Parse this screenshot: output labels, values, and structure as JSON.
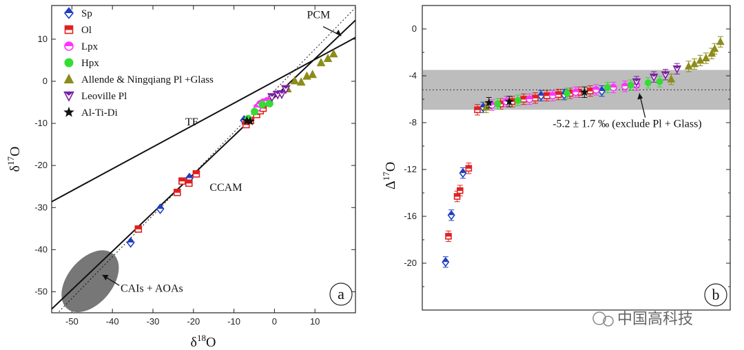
{
  "figure": {
    "watermark": "中国高科技",
    "colors": {
      "Sp": "#1f3fbf",
      "Ol": "#e02020",
      "Lpx": "#ff33ff",
      "Hpx": "#33dd33",
      "Pl_glass": "#8c8c1a",
      "Leoville": "#7a1fa0",
      "AlTiDi": "#111111",
      "band": "#bdbdbd"
    }
  },
  "chart_data": [
    {
      "type": "scatter",
      "panel_label": "a",
      "xlabel_main": "δ",
      "xlabel_sup": "18",
      "xlabel_tail": "O",
      "ylabel_main": "δ",
      "ylabel_sup": "17",
      "ylabel_tail": "O",
      "xlim": [
        -55,
        20
      ],
      "ylim": [
        -55,
        18
      ],
      "xticks": [
        -50,
        -40,
        -30,
        -20,
        -10,
        0,
        10
      ],
      "yticks": [
        -50,
        -40,
        -30,
        -20,
        -10,
        0,
        10
      ],
      "legend_position": "top-left",
      "legend": [
        {
          "key": "Sp",
          "label": "Sp",
          "marker": "diamond"
        },
        {
          "key": "Ol",
          "label": "Ol",
          "marker": "square-half"
        },
        {
          "key": "Lpx",
          "label": "Lpx",
          "marker": "circle-half"
        },
        {
          "key": "Hpx",
          "label": "Hpx",
          "marker": "circle"
        },
        {
          "key": "Pl_glass",
          "label": "Allende & Ningqiang Pl +Glass",
          "marker": "triangle-up"
        },
        {
          "key": "Leoville",
          "label": "Leoville Pl",
          "marker": "triangle-down"
        },
        {
          "key": "AlTiDi",
          "label": "Al-Ti-Di",
          "marker": "star"
        }
      ],
      "lines": [
        {
          "name": "TF",
          "x": [
            -55,
            20
          ],
          "y": [
            -28.6,
            10.4
          ],
          "style": "solid"
        },
        {
          "name": "CCAM",
          "x": [
            -55,
            20
          ],
          "y": [
            -54.1,
            14.5
          ],
          "style": "solid"
        },
        {
          "name": "PCM",
          "x": [
            -55,
            20
          ],
          "y": [
            -56.5,
            17.5
          ],
          "style": "dotted"
        }
      ],
      "annotations": [
        {
          "text": "TF",
          "x": -22,
          "y": -10.5
        },
        {
          "text": "CCAM",
          "x": -16,
          "y": -26
        },
        {
          "text": "PCM",
          "x": 8,
          "y": 15
        },
        {
          "text": "CAIs + AOAs",
          "x": -38,
          "y": -50
        }
      ],
      "ellipse": {
        "cx": -45.5,
        "cy": -47.5,
        "rx": 5.5,
        "ry": 8.5,
        "label": "CAIs + AOAs"
      },
      "series": [
        {
          "name": "Sp",
          "key": "Sp",
          "points": [
            [
              -35.5,
              -38.3
            ],
            [
              -28.2,
              -30.3
            ],
            [
              -21.0,
              -23.0
            ],
            [
              -7.5,
              -9.3
            ],
            [
              -6.3,
              -9.2
            ]
          ]
        },
        {
          "name": "Ol",
          "key": "Ol",
          "points": [
            [
              -33.6,
              -35.1
            ],
            [
              -24.0,
              -26.4
            ],
            [
              -22.8,
              -23.7
            ],
            [
              -21.1,
              -24.2
            ],
            [
              -19.3,
              -22.0
            ],
            [
              -7.0,
              -10.3
            ],
            [
              -5.9,
              -9.3
            ],
            [
              -4.4,
              -7.9
            ],
            [
              -3.5,
              -7.0
            ],
            [
              -2.8,
              -6.4
            ]
          ]
        },
        {
          "name": "Lpx",
          "key": "Lpx",
          "points": [
            [
              -4.2,
              -6.2
            ],
            [
              -3.5,
              -5.4
            ],
            [
              -2.7,
              -5.0
            ],
            [
              -1.8,
              -4.7
            ]
          ]
        },
        {
          "name": "Hpx",
          "key": "Hpx",
          "points": [
            [
              -6.5,
              -8.9
            ],
            [
              -4.9,
              -7.2
            ],
            [
              -3.0,
              -5.5
            ],
            [
              -1.2,
              -5.3
            ]
          ]
        },
        {
          "name": "Allende & Ningqiang Pl +Glass",
          "key": "Pl_glass",
          "points": [
            [
              3.2,
              -1.8
            ],
            [
              5.0,
              0.1
            ],
            [
              6.6,
              -0.2
            ],
            [
              8.0,
              1.2
            ],
            [
              9.4,
              1.6
            ],
            [
              11.5,
              4.4
            ],
            [
              13.2,
              5.4
            ],
            [
              14.6,
              6.5
            ]
          ]
        },
        {
          "name": "Leoville Pl",
          "key": "Leoville",
          "points": [
            [
              -0.6,
              -3.7
            ],
            [
              0.8,
              -3.1
            ],
            [
              1.8,
              -3.0
            ],
            [
              2.8,
              -1.8
            ]
          ]
        },
        {
          "name": "Al-Ti-Di",
          "key": "AlTiDi",
          "points": [
            [
              -6.8,
              -9.4
            ],
            [
              -6.0,
              -9.5
            ]
          ]
        }
      ]
    },
    {
      "type": "scatter",
      "panel_label": "b",
      "ylabel_main": "Δ",
      "ylabel_sup": "17",
      "ylabel_tail": "O",
      "xlim": [
        0,
        100
      ],
      "ylim": [
        -24,
        2
      ],
      "yticks": [
        -20,
        -16,
        -12,
        -8,
        -4,
        0
      ],
      "ytick_labels": [
        "-20",
        "-16",
        "-12",
        "-8",
        "-4",
        "0"
      ],
      "band": {
        "y1": -6.9,
        "y2": -3.5
      },
      "mean_line": {
        "y": -5.2
      },
      "annotation": {
        "text": "-5.2 ± 1.7 ‰ (exclude Pl + Glass)",
        "x": 41,
        "y": -7.8
      },
      "series": [
        {
          "name": "Sp",
          "key": "Sp",
          "points": [
            [
              4,
              -19.9
            ],
            [
              6,
              -15.9
            ],
            [
              10,
              -12.3
            ],
            [
              17,
              -6.7
            ],
            [
              37,
              -5.7
            ],
            [
              45,
              -5.6
            ],
            [
              58,
              -5.3
            ]
          ]
        },
        {
          "name": "Ol",
          "key": "Ol",
          "points": [
            [
              5,
              -17.7
            ],
            [
              8,
              -14.3
            ],
            [
              9,
              -13.8
            ],
            [
              12,
              -11.9
            ],
            [
              15,
              -6.9
            ],
            [
              23,
              -6.4
            ],
            [
              27,
              -6.2
            ],
            [
              31,
              -6.0
            ],
            [
              35,
              -5.9
            ],
            [
              39,
              -5.7
            ],
            [
              43,
              -5.6
            ],
            [
              47,
              -5.5
            ],
            [
              50,
              -5.4
            ],
            [
              54,
              -5.3
            ]
          ]
        },
        {
          "name": "Lpx",
          "key": "Lpx",
          "points": [
            [
              20,
              -6.5
            ],
            [
              25,
              -6.2
            ],
            [
              33,
              -6.0
            ],
            [
              41,
              -5.7
            ],
            [
              49,
              -5.4
            ],
            [
              56,
              -5.2
            ],
            [
              62,
              -5.0
            ],
            [
              66,
              -4.9
            ],
            [
              70,
              -4.8
            ]
          ]
        },
        {
          "name": "Hpx",
          "key": "Hpx",
          "points": [
            [
              22,
              -6.4
            ],
            [
              29,
              -6.1
            ],
            [
              46,
              -5.5
            ],
            [
              60,
              -5.0
            ],
            [
              68,
              -4.8
            ],
            [
              74,
              -4.6
            ],
            [
              78,
              -4.5
            ]
          ]
        },
        {
          "name": "Allende & Ningqiang Pl +Glass",
          "key": "Pl_glass",
          "points": [
            [
              18,
              -6.7
            ],
            [
              82,
              -4.3
            ],
            [
              88,
              -3.2
            ],
            [
              90,
              -3.0
            ],
            [
              92,
              -2.7
            ],
            [
              94,
              -2.5
            ],
            [
              96,
              -2.1
            ],
            [
              97,
              -1.7
            ],
            [
              99,
              -1.1
            ]
          ]
        },
        {
          "name": "Leoville Pl",
          "key": "Leoville",
          "points": [
            [
              70,
              -4.5
            ],
            [
              76,
              -4.1
            ],
            [
              80,
              -3.9
            ],
            [
              84,
              -3.4
            ]
          ]
        },
        {
          "name": "Al-Ti-Di",
          "key": "AlTiDi",
          "points": [
            [
              19,
              -6.3
            ],
            [
              26,
              -6.2
            ],
            [
              52,
              -5.4
            ]
          ]
        }
      ]
    }
  ]
}
